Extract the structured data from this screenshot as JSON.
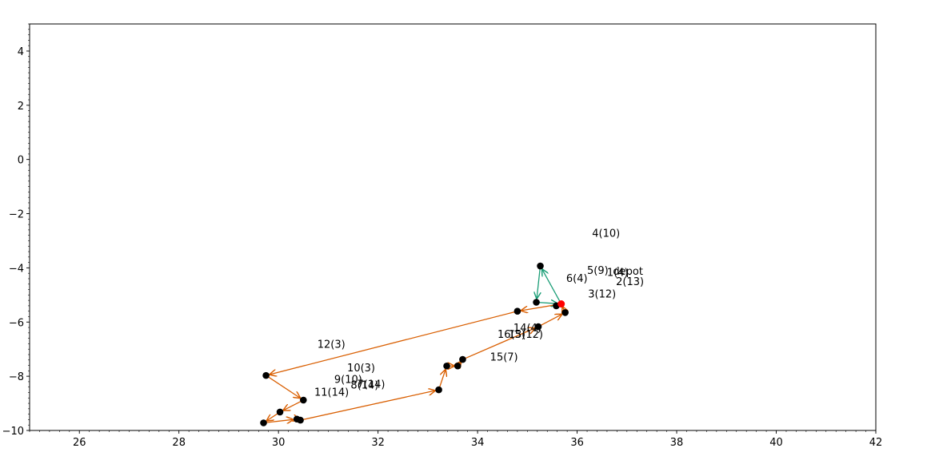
{
  "chart_data": {
    "type": "scatter",
    "title": "",
    "xlabel": "",
    "ylabel": "",
    "xlim": [
      25,
      42
    ],
    "ylim": [
      -10,
      5
    ],
    "x_ticks": [
      26,
      28,
      30,
      32,
      34,
      36,
      38,
      40,
      42
    ],
    "y_ticks": [
      -10,
      -8,
      -6,
      -4,
      -2,
      0,
      2,
      4
    ],
    "x_tick_labels": [
      "26",
      "28",
      "30",
      "32",
      "34",
      "36",
      "38",
      "40",
      "42"
    ],
    "y_tick_labels": [
      "−10",
      "−8",
      "−6",
      "−4",
      "−2",
      "0",
      "2",
      "4"
    ],
    "grid": false,
    "depot": {
      "x": 35.68,
      "y": -5.33,
      "color": "#ff0000"
    },
    "points": [
      {
        "x": 35.26,
        "y": -3.93
      },
      {
        "x": 35.18,
        "y": -5.27
      },
      {
        "x": 35.58,
        "y": -5.4
      },
      {
        "x": 35.76,
        "y": -5.65
      },
      {
        "x": 34.8,
        "y": -5.6
      },
      {
        "x": 35.22,
        "y": -6.17
      },
      {
        "x": 33.7,
        "y": -7.38
      },
      {
        "x": 33.6,
        "y": -7.62
      },
      {
        "x": 33.38,
        "y": -7.62
      },
      {
        "x": 33.22,
        "y": -8.5
      },
      {
        "x": 29.75,
        "y": -7.97
      },
      {
        "x": 30.5,
        "y": -8.88
      },
      {
        "x": 30.03,
        "y": -9.32
      },
      {
        "x": 29.7,
        "y": -9.72
      },
      {
        "x": 30.37,
        "y": -9.58
      },
      {
        "x": 30.44,
        "y": -9.62
      }
    ],
    "routes": [
      {
        "color": "#1b9e77",
        "path": [
          [
            35.68,
            -5.33
          ],
          [
            35.26,
            -3.93
          ],
          [
            35.18,
            -5.27
          ],
          [
            35.68,
            -5.33
          ]
        ]
      },
      {
        "color": "#d95f02",
        "path": [
          [
            35.68,
            -5.33
          ],
          [
            34.8,
            -5.6
          ],
          [
            29.75,
            -7.97
          ],
          [
            30.5,
            -8.88
          ],
          [
            30.03,
            -9.32
          ],
          [
            29.7,
            -9.72
          ],
          [
            30.37,
            -9.58
          ],
          [
            30.44,
            -9.62
          ],
          [
            33.22,
            -8.5
          ],
          [
            33.38,
            -7.62
          ],
          [
            33.6,
            -7.62
          ],
          [
            33.7,
            -7.38
          ],
          [
            35.22,
            -6.17
          ],
          [
            35.76,
            -5.65
          ],
          [
            35.68,
            -5.33
          ]
        ]
      }
    ],
    "labels": [
      {
        "text": "4(10)",
        "x": 36.3,
        "y": -2.85
      },
      {
        "text": "5(9)",
        "x": 36.2,
        "y": -4.22
      },
      {
        "text": "depot",
        "x": 36.72,
        "y": -4.25
      },
      {
        "text": "1(4)",
        "x": 36.6,
        "y": -4.3
      },
      {
        "text": "6(4)",
        "x": 35.78,
        "y": -4.52
      },
      {
        "text": "2(13)",
        "x": 36.78,
        "y": -4.63
      },
      {
        "text": "3(12)",
        "x": 36.22,
        "y": -5.1
      },
      {
        "text": "14(4)",
        "x": 34.72,
        "y": -6.35
      },
      {
        "text": "13(12)",
        "x": 34.62,
        "y": -6.58
      },
      {
        "text": "16(5)",
        "x": 34.4,
        "y": -6.58
      },
      {
        "text": "15(7)",
        "x": 34.25,
        "y": -7.42
      },
      {
        "text": "12(3)",
        "x": 30.78,
        "y": -6.95
      },
      {
        "text": "10(3)",
        "x": 31.38,
        "y": -7.82
      },
      {
        "text": "9(10)",
        "x": 31.12,
        "y": -8.25
      },
      {
        "text": "7(14)",
        "x": 31.58,
        "y": -8.42
      },
      {
        "text": "8(14)",
        "x": 31.45,
        "y": -8.45
      },
      {
        "text": "11(14)",
        "x": 30.72,
        "y": -8.72
      }
    ]
  }
}
